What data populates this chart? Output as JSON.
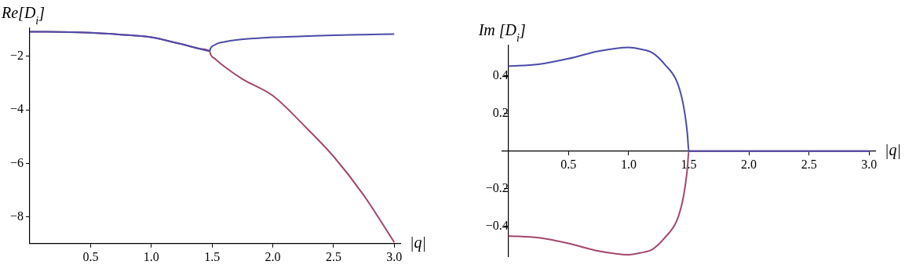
{
  "chart_data": [
    {
      "type": "line",
      "xlabel": "|q|",
      "ylabel": "Re[D$_{i}$]",
      "xlim": [
        0,
        3.05
      ],
      "ylim": [
        -9,
        -0.95
      ],
      "xticks": [
        0.5,
        {
          "value": 1,
          "label": "1.0"
        },
        1.5,
        {
          "value": 2,
          "label": "2.0"
        },
        2.5,
        {
          "value": 3,
          "label": "3.0"
        }
      ],
      "yticks": [
        -2,
        -4,
        -6,
        -8
      ],
      "grid": false,
      "legend": false,
      "marker": "none",
      "line_style": "solid",
      "series": [
        {
          "color": "#4b4ba8",
          "x": [
            0,
            0.25,
            0.5,
            0.75,
            1.0,
            1.2,
            1.3,
            1.4,
            1.48,
            1.49,
            1.52,
            1.55,
            1.6,
            1.7,
            1.85,
            2.0,
            2.25,
            2.5,
            2.75,
            3.0
          ],
          "values": [
            -1.08,
            -1.09,
            -1.12,
            -1.19,
            -1.29,
            -1.49,
            -1.6,
            -1.72,
            -1.8,
            -1.68,
            -1.58,
            -1.51,
            -1.46,
            -1.39,
            -1.33,
            -1.29,
            -1.25,
            -1.21,
            -1.19,
            -1.17
          ]
        },
        {
          "color": "#a2476f",
          "x": [
            0,
            0.25,
            0.5,
            0.75,
            1.0,
            1.2,
            1.3,
            1.4,
            1.48,
            1.49,
            1.52,
            1.6,
            1.75,
            2.0,
            2.25,
            2.5,
            2.75,
            3.0
          ],
          "values": [
            -1.08,
            -1.09,
            -1.12,
            -1.19,
            -1.29,
            -1.49,
            -1.6,
            -1.72,
            -1.8,
            -1.95,
            -2.08,
            -2.38,
            -2.85,
            -3.47,
            -4.55,
            -5.74,
            -7.2,
            -8.95
          ]
        }
      ]
    },
    {
      "type": "line",
      "xlabel": "|q|",
      "ylabel": "Im [D$_{i}$]",
      "xlim": [
        -0.05,
        3.05
      ],
      "ylim": [
        -0.56,
        0.56
      ],
      "xticks": [
        0.5,
        {
          "value": 1,
          "label": "1.0"
        },
        1.5,
        {
          "value": 2,
          "label": "2.0"
        },
        2.5,
        {
          "value": 3,
          "label": "3.0"
        }
      ],
      "yticks": [
        -0.4,
        -0.2,
        0.2,
        0.4
      ],
      "grid": false,
      "legend": false,
      "marker": "none",
      "line_style": "solid",
      "series": [
        {
          "color": "#4b4ba8",
          "x": [
            0,
            0.25,
            0.5,
            0.75,
            1.0,
            1.1,
            1.2,
            1.3,
            1.4,
            1.45,
            1.48,
            1.49,
            1.5,
            2.0,
            2.5,
            3.0
          ],
          "values": [
            0.45,
            0.46,
            0.49,
            0.53,
            0.55,
            0.54,
            0.52,
            0.46,
            0.37,
            0.26,
            0.14,
            0.08,
            0,
            0,
            0,
            0
          ]
        },
        {
          "color": "#a2476f",
          "x": [
            0,
            0.25,
            0.5,
            0.75,
            1.0,
            1.1,
            1.2,
            1.3,
            1.4,
            1.45,
            1.48,
            1.49,
            1.5,
            2.0,
            2.5,
            3.0
          ],
          "values": [
            -0.45,
            -0.46,
            -0.49,
            -0.53,
            -0.55,
            -0.54,
            -0.52,
            -0.46,
            -0.37,
            -0.26,
            -0.14,
            -0.08,
            0,
            0,
            0,
            0
          ]
        }
      ]
    }
  ]
}
